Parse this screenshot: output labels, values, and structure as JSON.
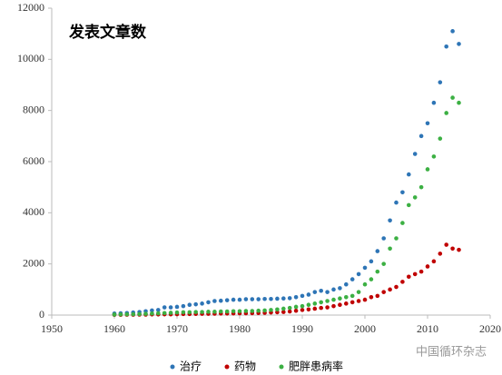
{
  "chart_data": {
    "type": "scatter",
    "title": "发表文章数",
    "x": [
      1960,
      1961,
      1962,
      1963,
      1964,
      1965,
      1966,
      1967,
      1968,
      1969,
      1970,
      1971,
      1972,
      1973,
      1974,
      1975,
      1976,
      1977,
      1978,
      1979,
      1980,
      1981,
      1982,
      1983,
      1984,
      1985,
      1986,
      1987,
      1988,
      1989,
      1990,
      1991,
      1992,
      1993,
      1994,
      1995,
      1996,
      1997,
      1998,
      1999,
      2000,
      2001,
      2002,
      2003,
      2004,
      2005,
      2006,
      2007,
      2008,
      2009,
      2010,
      2011,
      2012,
      2013,
      2014,
      2015
    ],
    "series": [
      {
        "name": "治疗",
        "color": "#2e75b6",
        "values": [
          60,
          70,
          80,
          100,
          120,
          150,
          180,
          200,
          300,
          300,
          320,
          350,
          400,
          420,
          450,
          500,
          550,
          560,
          580,
          600,
          600,
          620,
          620,
          620,
          630,
          630,
          640,
          650,
          660,
          700,
          750,
          800,
          900,
          950,
          900,
          1000,
          1050,
          1200,
          1400,
          1600,
          1850,
          2100,
          2500,
          3000,
          3700,
          4400,
          4800,
          5500,
          6300,
          7000,
          7500,
          8300,
          9100,
          10500,
          11100,
          10600
        ]
      },
      {
        "name": "药物",
        "color": "#c00000",
        "values": [
          10,
          10,
          15,
          15,
          20,
          20,
          25,
          25,
          30,
          30,
          35,
          40,
          40,
          45,
          50,
          50,
          55,
          60,
          60,
          65,
          70,
          70,
          75,
          80,
          90,
          100,
          110,
          120,
          140,
          170,
          200,
          220,
          250,
          280,
          300,
          350,
          400,
          450,
          500,
          550,
          600,
          700,
          750,
          900,
          1000,
          1100,
          1300,
          1500,
          1600,
          1700,
          1900,
          2100,
          2400,
          2750,
          2600,
          2550
        ]
      },
      {
        "name": "肥胖患病率",
        "color": "#3cb043",
        "values": [
          20,
          25,
          30,
          35,
          40,
          50,
          60,
          70,
          80,
          90,
          100,
          110,
          110,
          120,
          120,
          130,
          130,
          140,
          140,
          150,
          150,
          160,
          160,
          170,
          180,
          200,
          220,
          250,
          280,
          320,
          350,
          400,
          450,
          500,
          550,
          600,
          650,
          700,
          750,
          900,
          1200,
          1400,
          1700,
          2000,
          2600,
          3000,
          3600,
          4300,
          4600,
          5000,
          5700,
          6200,
          6900,
          7900,
          8500,
          8300
        ]
      }
    ],
    "xlim": [
      1950,
      2020
    ],
    "xticks": [
      1950,
      1960,
      1970,
      1980,
      1990,
      2000,
      2010,
      2020
    ],
    "ylim": [
      0,
      12000
    ],
    "yticks": [
      0,
      2000,
      4000,
      6000,
      8000,
      10000,
      12000
    ],
    "watermark": "中国循环杂志"
  }
}
